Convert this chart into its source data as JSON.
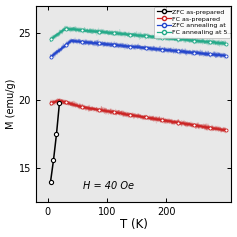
{
  "title": "",
  "xlabel": "T (K)",
  "ylabel": "M (emu/g)",
  "xlim": [
    -20,
    310
  ],
  "ylim": [
    12.5,
    27
  ],
  "yticks": [
    15,
    20,
    25
  ],
  "xticks": [
    0,
    100,
    200
  ],
  "annotation": "H = 40 Oe",
  "legend_entries": [
    "ZFC as-prepared",
    "FC as-prepared",
    "ZFC annealing at",
    "FC annealing at 5"
  ],
  "bg_color": "#e8e8e8",
  "zfc_prep_color": "#000000",
  "fc_prep_color": "#cc2222",
  "zfc_anneal_color": "#2244cc",
  "fc_anneal_color": "#22aa88",
  "fc_prep_band_color": "#dd8888",
  "zfc_anneal_band_color": "#8899ee",
  "fc_anneal_band_color": "#88ccbb",
  "zfc_prep_T": [
    5,
    10,
    15,
    20
  ],
  "zfc_prep_M": [
    14.0,
    15.6,
    17.5,
    19.8
  ],
  "fc_prep_flat_M": 20.0,
  "fc_prep_end_M": 17.8,
  "zfc_anneal_start_M": 23.2,
  "zfc_anneal_peak_M": 24.4,
  "zfc_anneal_peak_T": 40,
  "zfc_anneal_end_M": 23.3,
  "fc_anneal_start_M": 24.5,
  "fc_anneal_peak_M": 25.3,
  "fc_anneal_peak_T": 30,
  "fc_anneal_end_M": 24.2
}
